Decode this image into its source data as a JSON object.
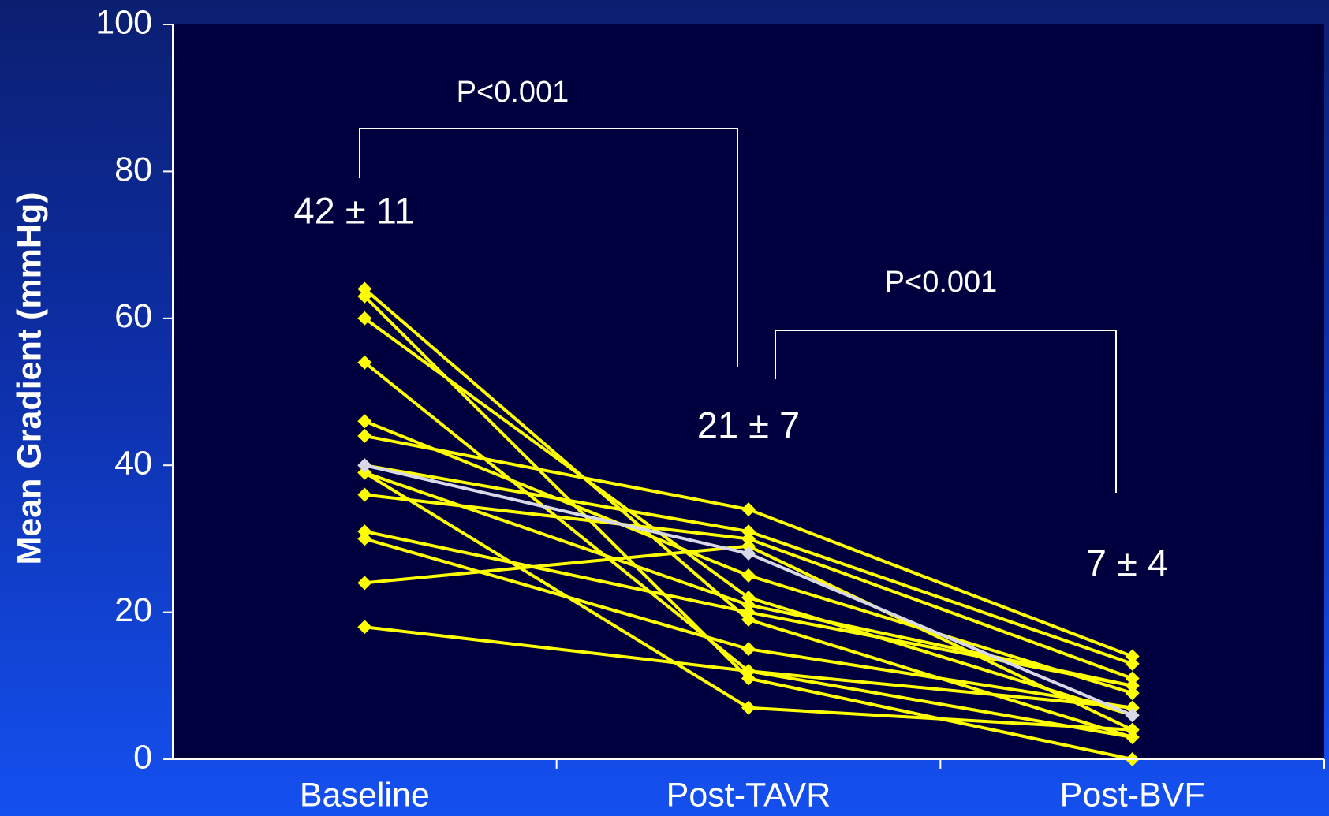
{
  "chart_data": {
    "type": "line",
    "y_label": "Mean Gradient (mmHg)",
    "categories": [
      "Baseline",
      "Post-TAVR",
      "Post-BVF"
    ],
    "ylim": [
      0,
      100
    ],
    "yticks": [
      0,
      20,
      40,
      60,
      80,
      100
    ],
    "annotations": [
      "P<0.001",
      "42 ± 11",
      "P<0.001",
      "21 ± 7",
      "7 ± 4"
    ],
    "series": [
      {
        "color": "#ffff00",
        "values": [
          64,
          19,
          3
        ]
      },
      {
        "color": "#ffff00",
        "values": [
          63,
          11,
          0
        ]
      },
      {
        "color": "#ffff00",
        "values": [
          60,
          22,
          6
        ]
      },
      {
        "color": "#ffff00",
        "values": [
          54,
          12,
          7
        ]
      },
      {
        "color": "#ffff00",
        "values": [
          46,
          25,
          9
        ]
      },
      {
        "color": "#ffff00",
        "values": [
          44,
          34,
          14
        ]
      },
      {
        "color": "#ffff00",
        "values": [
          40,
          31,
          13
        ]
      },
      {
        "color": "#ffff00",
        "values": [
          39,
          21,
          10
        ]
      },
      {
        "color": "#ffff00",
        "values": [
          39,
          7,
          4
        ]
      },
      {
        "color": "#ffff00",
        "values": [
          36,
          30,
          11
        ]
      },
      {
        "color": "#ffff00",
        "values": [
          31,
          20,
          10
        ]
      },
      {
        "color": "#ffff00",
        "values": [
          30,
          15,
          7
        ]
      },
      {
        "color": "#ffff00",
        "values": [
          24,
          29,
          4
        ]
      },
      {
        "color": "#ffff00",
        "values": [
          18,
          12,
          3
        ]
      },
      {
        "color": "#d8d8e8",
        "values": [
          40,
          28,
          6
        ]
      }
    ]
  }
}
